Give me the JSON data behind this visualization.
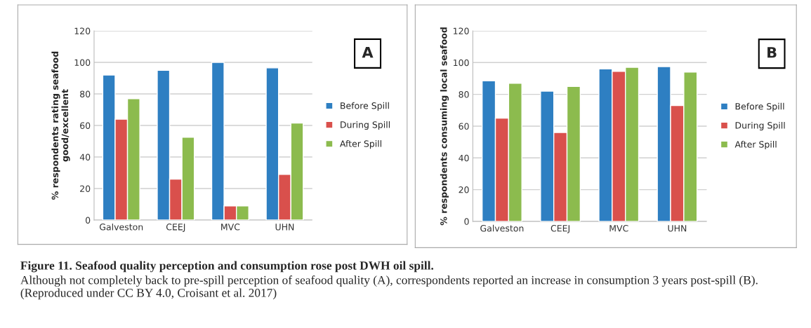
{
  "chart_data": [
    {
      "type": "bar",
      "ylabel": "% respondents rating seafood\ngood/excellent",
      "categories": [
        "Galveston",
        "CEEJ",
        "MVC",
        "UHN"
      ],
      "series": [
        {
          "name": "Before Spill",
          "color": "#2e7fc2",
          "values": [
            92,
            95,
            100,
            96.5
          ]
        },
        {
          "name": "During Spill",
          "color": "#d9504c",
          "values": [
            64,
            26,
            9,
            29
          ]
        },
        {
          "name": "After Spill",
          "color": "#8cbb4e",
          "values": [
            77,
            52.5,
            9,
            61.5
          ]
        }
      ],
      "ylim": [
        0,
        120
      ],
      "yticks": [
        0,
        20,
        40,
        60,
        80,
        100,
        120
      ],
      "grid": "y",
      "legend": "right",
      "annotations": [
        "A",
        "Figure 11. Seafood quality perception and consumption rose post DWH oil spill.",
        "Although not completely back to pre-spill perception of seafood quality (A), correspondents reported an increase in consumption 3 years post-spill (B). (Reproduced under CC BY 4.0, Croisant et al. 2017)"
      ]
    },
    {
      "type": "bar",
      "ylabel": "% respondents consuming local seafood",
      "categories": [
        "Galveston",
        "CEEJ",
        "MVC",
        "UHN"
      ],
      "series": [
        {
          "name": "Before Spill",
          "color": "#2e7fc2",
          "values": [
            88.5,
            82,
            96,
            97.5
          ]
        },
        {
          "name": "During Spill",
          "color": "#d9504c",
          "values": [
            65,
            56,
            94.5,
            73
          ]
        },
        {
          "name": "After Spill",
          "color": "#8cbb4e",
          "values": [
            87,
            85,
            97,
            94
          ]
        }
      ],
      "ylim": [
        0,
        120
      ],
      "yticks": [
        0,
        20,
        40,
        60,
        80,
        100,
        120
      ],
      "grid": "y",
      "legend": "right",
      "annotations": [
        "B"
      ]
    }
  ]
}
